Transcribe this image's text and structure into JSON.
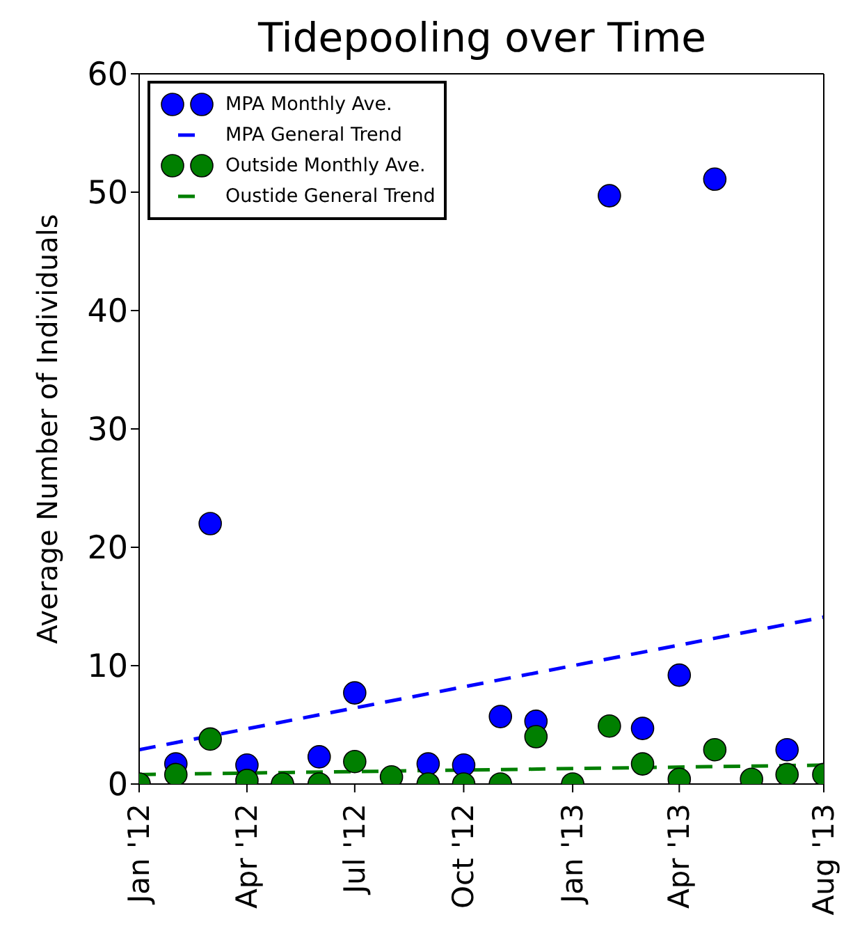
{
  "chart_data": {
    "type": "scatter",
    "title": "Tidepooling over Time",
    "ylabel": "Average Number of Individuals",
    "xlim": [
      "2012-01",
      "2013-08"
    ],
    "xticks": [
      {
        "value": "2012-01",
        "label": "Jan '12"
      },
      {
        "value": "2012-04",
        "label": "Apr '12"
      },
      {
        "value": "2012-07",
        "label": "Jul '12"
      },
      {
        "value": "2012-10",
        "label": "Oct '12"
      },
      {
        "value": "2013-01",
        "label": "Jan '13"
      },
      {
        "value": "2013-04",
        "label": "Apr '13"
      },
      {
        "value": "2013-08",
        "label": "Aug '13"
      }
    ],
    "ylim": [
      0,
      60
    ],
    "yticks": [
      0,
      10,
      20,
      30,
      40,
      50,
      60
    ],
    "grid": false,
    "legend": "top left",
    "series": [
      {
        "name": "MPA Monthly Ave.",
        "marker": "circle",
        "color": "#0000ff",
        "x": [
          "2012-02",
          "2012-03",
          "2012-04",
          "2012-06",
          "2012-07",
          "2012-09",
          "2012-10",
          "2012-11",
          "2012-12",
          "2013-02",
          "2013-03",
          "2013-04",
          "2013-05",
          "2013-07"
        ],
        "values": [
          1.7,
          22,
          1.6,
          2.3,
          7.7,
          1.7,
          1.6,
          5.7,
          5.3,
          49.7,
          4.7,
          9.2,
          51.1,
          2.9
        ]
      },
      {
        "name": "MPA General Trend",
        "type": "line",
        "line_style": "dashed",
        "color": "#0000ff",
        "x": [
          "2012-01",
          "2013-08"
        ],
        "values": [
          2.9,
          14.1
        ]
      },
      {
        "name": "Outside Monthly Ave.",
        "marker": "circle",
        "color": "#007f00",
        "x": [
          "2012-01",
          "2012-02",
          "2012-03",
          "2012-04",
          "2012-05",
          "2012-06",
          "2012-07",
          "2012-08",
          "2012-09",
          "2012-10",
          "2012-11",
          "2012-12",
          "2013-01",
          "2013-02",
          "2013-03",
          "2013-04",
          "2013-05",
          "2013-06",
          "2013-07",
          "2013-08"
        ],
        "values": [
          0,
          0.8,
          3.8,
          0.3,
          0,
          0,
          1.9,
          0.6,
          0,
          0,
          0,
          4,
          0,
          4.9,
          1.7,
          0.4,
          2.9,
          0.4,
          0.8,
          0.8
        ]
      },
      {
        "name": "Oustide General Trend",
        "type": "line",
        "line_style": "dashed",
        "color": "#007f00",
        "x": [
          "2012-01",
          "2013-08"
        ],
        "values": [
          0.8,
          1.6
        ]
      }
    ]
  }
}
